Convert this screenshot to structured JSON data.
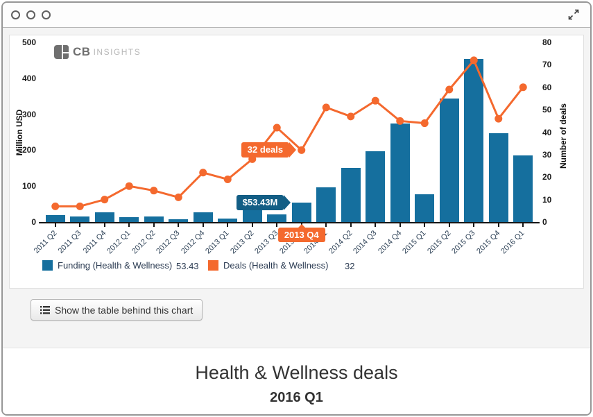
{
  "window": {
    "controls": [
      "window-button-1",
      "window-button-2",
      "window-button-3"
    ],
    "expand_icon": "expand-icon"
  },
  "logo": {
    "cb": "CB",
    "insights": "INSIGHTS"
  },
  "chart_data": {
    "type": "bar",
    "subtype": "bar+line dual axis",
    "categories": [
      "2011 Q2",
      "2011 Q3",
      "2011 Q4",
      "2012 Q1",
      "2012 Q2",
      "2012 Q3",
      "2012 Q4",
      "2013 Q1",
      "2013 Q2",
      "2013 Q3",
      "2013 Q4",
      "2014 Q1",
      "2014 Q2",
      "2014 Q3",
      "2014 Q4",
      "2015 Q1",
      "2015 Q2",
      "2015 Q3",
      "2015 Q4",
      "2016 Q1"
    ],
    "series": [
      {
        "name": "Funding (Health & Wellness)",
        "type": "bar",
        "axis": "left",
        "color": "#156f9e",
        "values": [
          20,
          16,
          27,
          14,
          15,
          8,
          27,
          9,
          37,
          22,
          53.43,
          97,
          151,
          196,
          274,
          77,
          344,
          453,
          247,
          185
        ]
      },
      {
        "name": "Deals (Health & Wellness)",
        "type": "line",
        "axis": "right",
        "color": "#f4692e",
        "values": [
          7,
          7,
          10,
          16,
          14,
          11,
          22,
          19,
          28,
          42,
          32,
          51,
          47,
          54,
          45,
          44,
          59,
          72,
          46,
          60
        ]
      }
    ],
    "left_axis": {
      "label": "Million USD",
      "min": 0,
      "max": 500,
      "step": 100,
      "ticks": [
        0,
        100,
        200,
        300,
        400,
        500
      ]
    },
    "right_axis": {
      "label": "Number of deals",
      "min": 0,
      "max": 80,
      "step": 10,
      "ticks": [
        0,
        10,
        20,
        30,
        40,
        50,
        60,
        70,
        80
      ]
    },
    "grid": false,
    "annotations": {
      "deals_callout": {
        "text": "32 deals",
        "index": 10,
        "value": 32,
        "color": "#f4692e"
      },
      "funding_callout": {
        "text": "$53.43M",
        "index": 10,
        "value": 53.43,
        "color": "#135e85"
      },
      "axis_callout": {
        "text": "2013 Q4",
        "index": 10,
        "color": "#f4692e"
      }
    },
    "legend": [
      {
        "label": "Funding (Health & Wellness)",
        "value": "53.43",
        "color": "#156f9e"
      },
      {
        "label": "Deals (Health & Wellness)",
        "value": "32",
        "color": "#f4692e"
      }
    ],
    "legend_position": "bottom"
  },
  "table_button": {
    "label": "Show the table behind this chart"
  },
  "footer": {
    "title": "Health & Wellness deals",
    "subtitle": "2016 Q1"
  }
}
